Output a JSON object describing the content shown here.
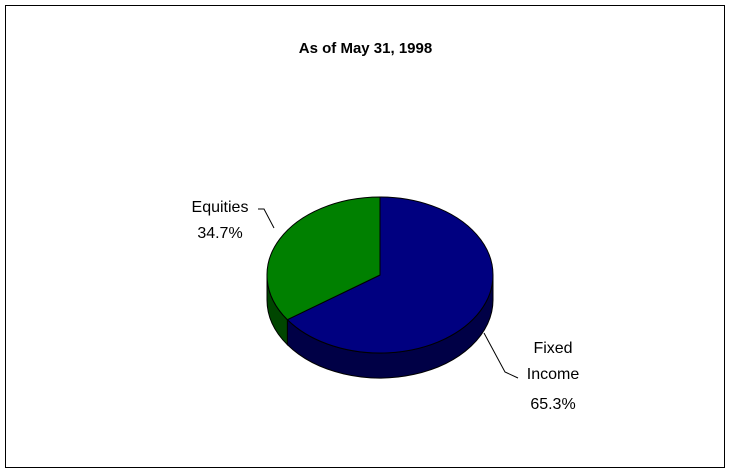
{
  "chart_data": {
    "type": "pie",
    "title": "As of May 31, 1998",
    "categories": [
      "Fixed Income",
      "Equities"
    ],
    "values": [
      65.3,
      34.7
    ],
    "value_labels": [
      "65.3%",
      "34.7%"
    ],
    "colors": [
      "#000080",
      "#008000"
    ]
  }
}
